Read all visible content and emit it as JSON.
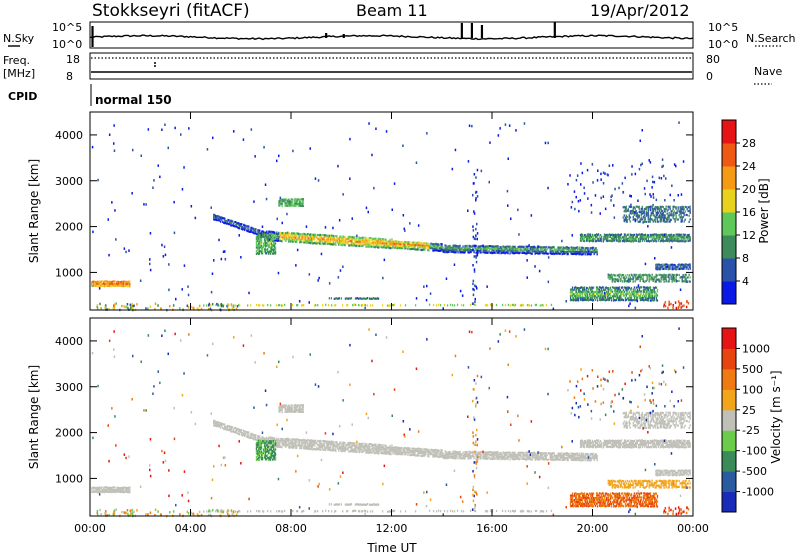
{
  "header": {
    "station": "Stokkseyri (fitACF)",
    "beam": "Beam 11",
    "date": "19/Apr/2012"
  },
  "top_panels": {
    "nsky_label": "N.Sky",
    "nsky_ticks": [
      "10^5",
      "10^0"
    ],
    "nsearch_label": "N.Search",
    "nsearch_ticks": [
      "10^5",
      "10^0"
    ],
    "freq_label": "Freq.",
    "freq_unit": "[MHz]",
    "freq_ticks": [
      "18",
      "8"
    ],
    "nave_label": "Nave",
    "nave_ticks": [
      "80",
      "0"
    ],
    "cpid_label": "CPID",
    "cpid_value": "normal 150"
  },
  "chart_data": [
    {
      "type": "heatmap",
      "name": "power",
      "ylabel": "Slant Range [km]",
      "ylim": [
        180,
        4500
      ],
      "yticks": [
        "1000",
        "2000",
        "3000",
        "4000"
      ],
      "xlim": [
        0,
        24
      ],
      "colorbar": {
        "label": "Power [dB]",
        "ticks": [
          "4",
          "8",
          "12",
          "16",
          "20",
          "24",
          "28"
        ],
        "colors": [
          "#0a1ae6",
          "#2a52a8",
          "#3d8a5a",
          "#5fc85a",
          "#e8d21e",
          "#f49a14",
          "#ee5a14",
          "#e61414"
        ]
      }
    },
    {
      "type": "heatmap",
      "name": "velocity",
      "ylabel": "Slant Range [km]",
      "ylim": [
        180,
        4500
      ],
      "yticks": [
        "1000",
        "2000",
        "3000",
        "4000"
      ],
      "xlabel": "Time UT",
      "xlim": [
        0,
        24
      ],
      "xticks": [
        "00:00",
        "04:00",
        "08:00",
        "12:00",
        "16:00",
        "20:00",
        "00:00"
      ],
      "colorbar": {
        "label": "Velocity [m s⁻¹]",
        "ticks": [
          "1000",
          "500",
          "100",
          "25",
          "-25",
          "-100",
          "-500",
          "-1000"
        ],
        "colors": [
          "#1a2ab8",
          "#2a5aa0",
          "#3a8a5a",
          "#6acc4a",
          "#c0c0b8",
          "#f2a41a",
          "#ee7a10",
          "#e84410",
          "#e61414"
        ]
      }
    }
  ]
}
